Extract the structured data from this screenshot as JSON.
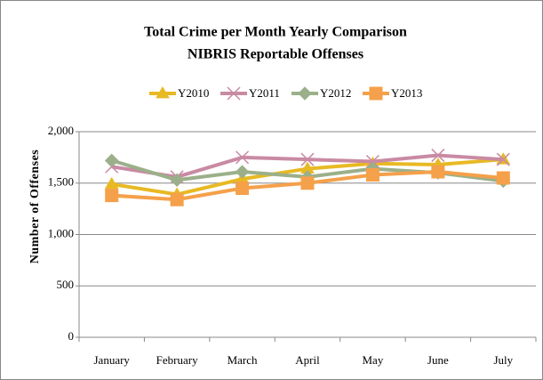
{
  "chart_data": {
    "type": "line",
    "title": "Total Crime per Month Yearly Comparison",
    "subtitle": "NIBRIS Reportable Offenses",
    "y_label": "Number of Offenses",
    "categories": [
      "January",
      "February",
      "March",
      "April",
      "May",
      "June",
      "July"
    ],
    "series": [
      {
        "name": "Y2010",
        "color": "#e8b923",
        "marker": "triangle",
        "values": [
          1490,
          1390,
          1540,
          1640,
          1690,
          1680,
          1730
        ]
      },
      {
        "name": "Y2011",
        "color": "#c98aa3",
        "marker": "x",
        "values": [
          1660,
          1560,
          1750,
          1730,
          1710,
          1770,
          1730
        ]
      },
      {
        "name": "Y2012",
        "color": "#9bb08a",
        "marker": "diamond",
        "values": [
          1720,
          1530,
          1610,
          1560,
          1640,
          1600,
          1520
        ]
      },
      {
        "name": "Y2013",
        "color": "#f5a04a",
        "marker": "square",
        "values": [
          1380,
          1340,
          1450,
          1500,
          1580,
          1610,
          1550
        ]
      }
    ],
    "ylim": [
      0,
      2000
    ],
    "yticks": [
      0,
      500,
      {
        "value": 1000,
        "label": "1,000"
      },
      {
        "value": 1500,
        "label": "1,500"
      },
      {
        "value": 2000,
        "label": "2,000"
      }
    ],
    "grid": true,
    "legend": "top"
  }
}
